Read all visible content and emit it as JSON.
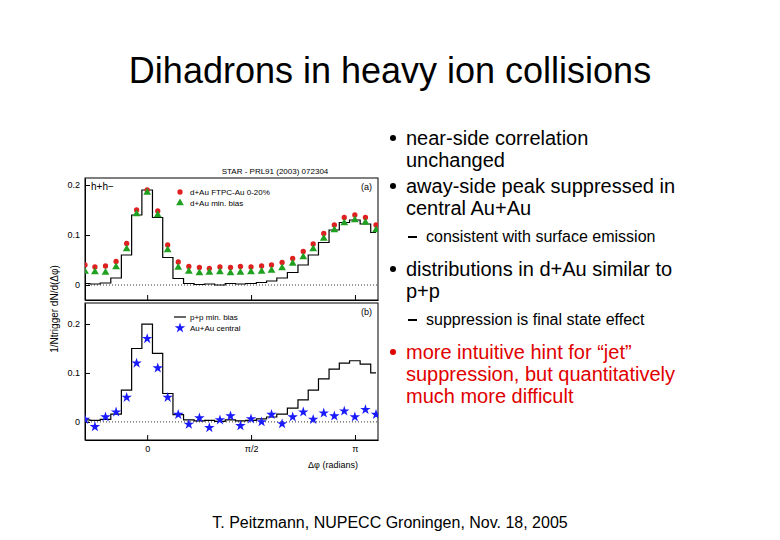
{
  "slide": {
    "title": "Dihadrons in heavy ion collisions",
    "bullets": [
      {
        "text": "near-side correlation unchanged",
        "color": "#000000"
      },
      {
        "text": "away-side peak suppressed in central Au+Au",
        "color": "#000000",
        "subitems": [
          "consistent with surface emission"
        ]
      },
      {
        "text": "distributions in d+Au similar to p+p",
        "color": "#000000",
        "subitems": [
          "suppression is final state effect"
        ]
      },
      {
        "text": "more intuitive hint for “jet” suppression, but quantitatively much more difficult",
        "color": "#e00000"
      }
    ],
    "footer": "T. Peitzmann, NUPECC Groningen, Nov. 18, 2005"
  },
  "chart_data": [
    {
      "type": "line",
      "annotations": [
        "STAR - PRL91 (2003) 072304",
        "h+h−",
        "(a)"
      ],
      "ylabel": "1/Ntrigger dN/d(Δφ)",
      "x": [
        -0.94,
        -0.79,
        -0.63,
        -0.47,
        -0.31,
        -0.16,
        0,
        0.16,
        0.31,
        0.47,
        0.63,
        0.79,
        0.94,
        1.1,
        1.26,
        1.41,
        1.57,
        1.73,
        1.88,
        2.04,
        2.2,
        2.36,
        2.51,
        2.67,
        2.83,
        2.98,
        3.14,
        3.3,
        3.46
      ],
      "xlim": [
        -0.94,
        3.49
      ],
      "xticks": [
        0,
        1.5708,
        3.1416
      ],
      "ylim": [
        -0.03,
        0.214
      ],
      "yticks": [
        0,
        0.1,
        0.2
      ],
      "tick_labels": "y",
      "legend": "top-left",
      "series": [
        {
          "color": "#000000",
          "line_style": "step",
          "marker": "none",
          "values": [
            0.003,
            0.002,
            0.004,
            0.014,
            0.06,
            0.14,
            0.19,
            0.135,
            0.055,
            0.013,
            0.003,
            0.001,
            0.002,
            0.0,
            0.003,
            0.002,
            0.003,
            0.005,
            0.008,
            0.014,
            0.025,
            0.04,
            0.06,
            0.085,
            0.11,
            0.125,
            0.13,
            0.122,
            0.105
          ]
        },
        {
          "name": "d+Au FTPC-Au 0-20%",
          "color": "#e02020",
          "line_style": "none",
          "marker": "circle",
          "values": [
            0.04,
            0.036,
            0.038,
            0.047,
            0.083,
            0.15,
            0.19,
            0.148,
            0.08,
            0.046,
            0.037,
            0.035,
            0.033,
            0.036,
            0.035,
            0.037,
            0.036,
            0.038,
            0.04,
            0.045,
            0.053,
            0.067,
            0.082,
            0.103,
            0.12,
            0.135,
            0.14,
            0.135,
            0.12
          ]
        },
        {
          "name": "d+Au min. bias",
          "color": "#20a020",
          "line_style": "none",
          "marker": "triangle",
          "values": [
            0.027,
            0.026,
            0.025,
            0.036,
            0.072,
            0.142,
            0.185,
            0.14,
            0.07,
            0.035,
            0.027,
            0.024,
            0.025,
            0.026,
            0.024,
            0.025,
            0.026,
            0.027,
            0.029,
            0.034,
            0.043,
            0.056,
            0.072,
            0.093,
            0.11,
            0.124,
            0.13,
            0.125,
            0.11
          ]
        }
      ]
    },
    {
      "type": "line",
      "annotations": [
        "(b)"
      ],
      "xlabel": "Δφ (radians)",
      "x": [
        -0.94,
        -0.79,
        -0.63,
        -0.47,
        -0.31,
        -0.16,
        0,
        0.16,
        0.31,
        0.47,
        0.63,
        0.79,
        0.94,
        1.1,
        1.26,
        1.41,
        1.57,
        1.73,
        1.88,
        2.04,
        2.2,
        2.36,
        2.51,
        2.67,
        2.83,
        2.98,
        3.14,
        3.3,
        3.46
      ],
      "xlim": [
        -0.94,
        3.49
      ],
      "xticks": [
        0,
        {
          "value": 1.5708,
          "label": "π/2"
        },
        {
          "value": 3.1416,
          "label": "π"
        }
      ],
      "ylim": [
        -0.037,
        0.243
      ],
      "yticks": [
        0,
        0.1,
        0.2
      ],
      "legend": "top-left",
      "series": [
        {
          "name": "p+p min. bias",
          "color": "#000000",
          "line_style": "step",
          "marker": "none",
          "values": [
            0.004,
            0.003,
            0.005,
            0.016,
            0.065,
            0.15,
            0.2,
            0.14,
            0.058,
            0.015,
            0.004,
            0.002,
            0.003,
            0.001,
            0.004,
            0.002,
            0.003,
            0.006,
            0.01,
            0.016,
            0.028,
            0.045,
            0.065,
            0.088,
            0.108,
            0.12,
            0.125,
            0.118,
            0.1
          ]
        },
        {
          "name": "Au+Au central",
          "color": "#1a1aff",
          "line_style": "none",
          "marker": "star",
          "values": [
            0.005,
            -0.01,
            0.01,
            0.02,
            0.05,
            0.12,
            0.17,
            0.11,
            0.05,
            0.015,
            -0.005,
            0.008,
            -0.012,
            0.004,
            0.012,
            -0.008,
            0.006,
            0.0,
            0.015,
            -0.004,
            0.01,
            0.02,
            0.005,
            0.018,
            0.012,
            0.022,
            0.01,
            0.025,
            0.015
          ]
        }
      ]
    }
  ]
}
